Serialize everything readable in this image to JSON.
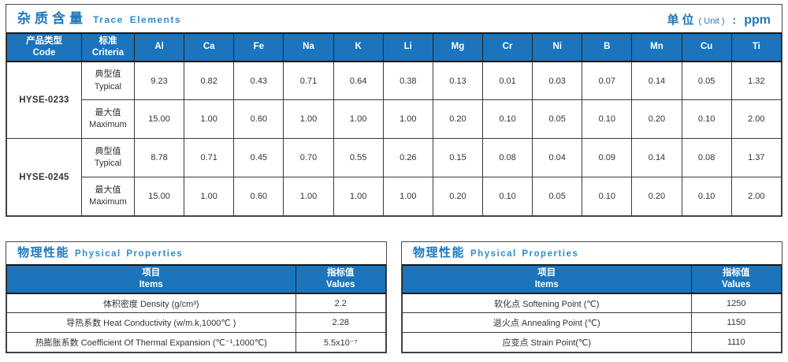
{
  "trace_section": {
    "title_zh": "杂质含量",
    "title_en": "Trace Elements",
    "unit_zh": "单位",
    "unit_paren": "( Unit )",
    "unit_sep": ":",
    "unit_value": "ppm",
    "table": {
      "col_code_zh": "产品类型",
      "col_code_en": "Code",
      "col_criteria_zh": "标准",
      "col_criteria_en": "Criteria",
      "elements": [
        "Al",
        "Ca",
        "Fe",
        "Na",
        "K",
        "Li",
        "Mg",
        "Cr",
        "Ni",
        "B",
        "Mn",
        "Cu",
        "Ti"
      ],
      "products": [
        {
          "code": "HYSE-0233",
          "rows": [
            {
              "criteria_zh": "典型值",
              "criteria_en": "Typical",
              "values": [
                "9.23",
                "0.82",
                "0.43",
                "0.71",
                "0.64",
                "0.38",
                "0.13",
                "0.01",
                "0.03",
                "0.07",
                "0.14",
                "0.05",
                "1.32"
              ]
            },
            {
              "criteria_zh": "最大值",
              "criteria_en": "Maximum",
              "values": [
                "15.00",
                "1.00",
                "0.60",
                "1.00",
                "1.00",
                "1.00",
                "0.20",
                "0.10",
                "0.05",
                "0.10",
                "0.20",
                "0.10",
                "2.00"
              ]
            }
          ]
        },
        {
          "code": "HYSE-0245",
          "rows": [
            {
              "criteria_zh": "典型值",
              "criteria_en": "Typical",
              "values": [
                "8.78",
                "0.71",
                "0.45",
                "0.70",
                "0.55",
                "0.26",
                "0.15",
                "0.08",
                "0.04",
                "0.09",
                "0.14",
                "0.08",
                "1.37"
              ]
            },
            {
              "criteria_zh": "最大值",
              "criteria_en": "Maximum",
              "values": [
                "15.00",
                "1.00",
                "0.60",
                "1.00",
                "1.00",
                "1.00",
                "0.20",
                "0.10",
                "0.05",
                "0.10",
                "0.20",
                "0.10",
                "2.00"
              ]
            }
          ]
        }
      ]
    }
  },
  "physical_sections": [
    {
      "title_zh": "物理性能",
      "title_en": "Physical Properties",
      "header": {
        "item_zh": "项目",
        "item_en": "Items",
        "value_zh": "指标值",
        "value_en": "Values"
      },
      "rows": [
        {
          "item": "体积密度 Density (g/cm³)",
          "value": "2.2"
        },
        {
          "item": "导热系数 Heat Conductivity (w/m.k,1000℃ )",
          "value": "2.28"
        },
        {
          "item": "热膨胀系数 Coefficient Of Thermal Expansion (℃⁻¹,1000℃)",
          "value": "5.5x10⁻⁷"
        }
      ]
    },
    {
      "title_zh": "物理性能",
      "title_en": "Physical Properties",
      "header": {
        "item_zh": "项目",
        "item_en": "Items",
        "value_zh": "指标值",
        "value_en": "Values"
      },
      "rows": [
        {
          "item": "软化点 Softening Point (℃)",
          "value": "1250"
        },
        {
          "item": "退火点 Annealing Point (℃)",
          "value": "1150"
        },
        {
          "item": "应变点 Strain Point(℃)",
          "value": "1110"
        }
      ]
    }
  ],
  "colors": {
    "header_blue": "#1B74BC",
    "title_blue": "#1E79BE",
    "subtitle_blue": "#2F8CCB",
    "border_dark": "#3a3a3a",
    "panel_border": "#4a4a4a"
  }
}
